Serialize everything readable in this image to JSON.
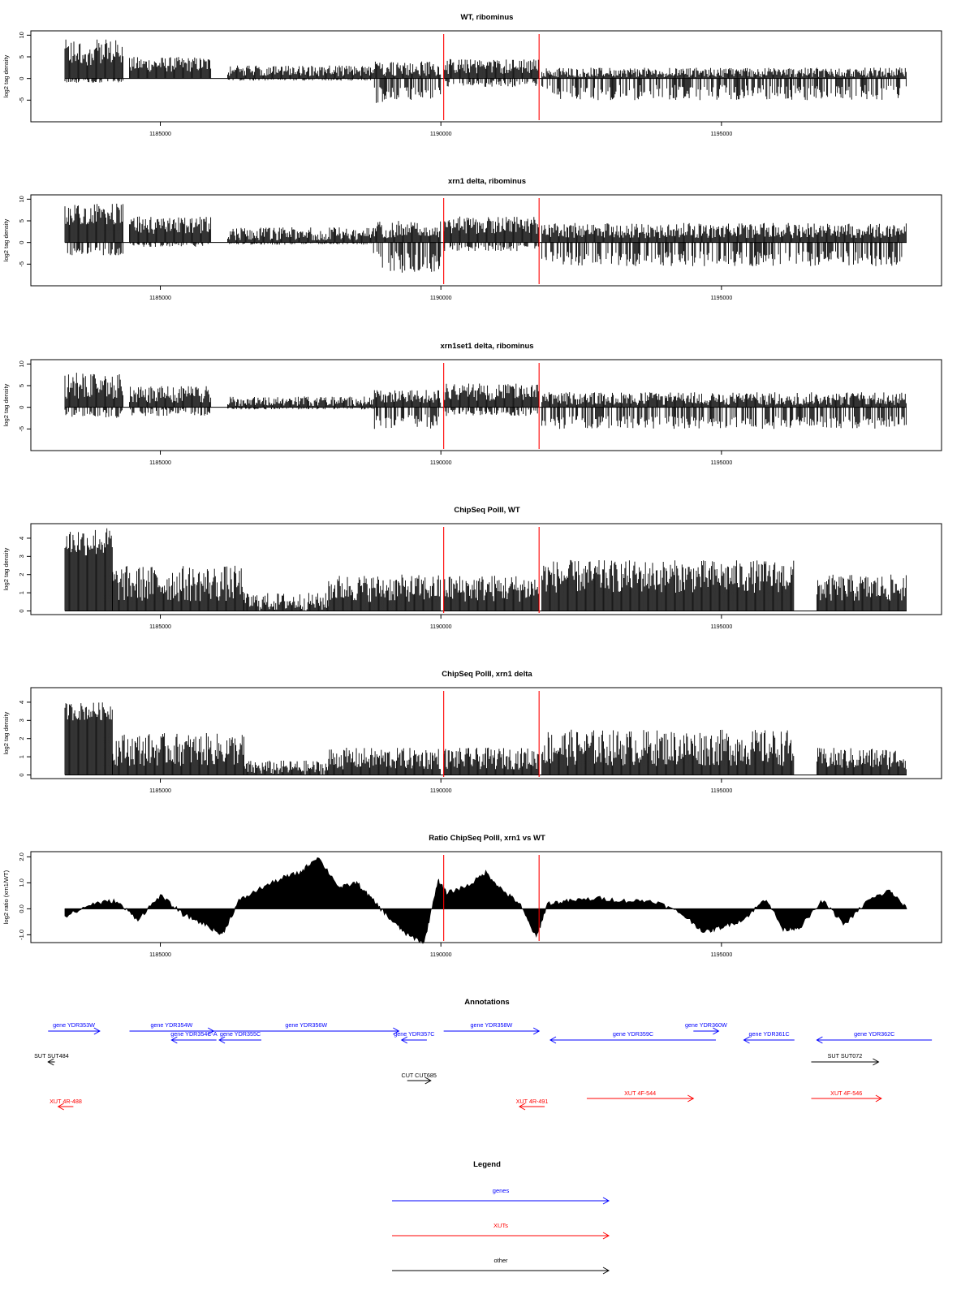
{
  "tracks": [
    {
      "id": "wt",
      "title": "WT, ribominus",
      "ylabel": "log2 tag density",
      "yticks": [
        "10",
        "5",
        "0",
        "-5"
      ],
      "ylim": [
        -10,
        11
      ]
    },
    {
      "id": "xrn1",
      "title": "xrn1 delta, ribominus",
      "ylabel": "log2 tag density",
      "yticks": [
        "10",
        "5",
        "0",
        "-5"
      ],
      "ylim": [
        -10,
        11
      ]
    },
    {
      "id": "xrn1set1",
      "title": "xrn1set1 delta, ribominus",
      "ylabel": "log2 tag density",
      "yticks": [
        "10",
        "5",
        "0",
        "-5"
      ],
      "ylim": [
        -10,
        11
      ]
    },
    {
      "id": "chip_wt",
      "title": "ChipSeq PolII, WT",
      "ylabel": "log2 tag density",
      "yticks": [
        "4",
        "3",
        "2",
        "1",
        "0"
      ],
      "ylim": [
        -0.2,
        4.8
      ]
    },
    {
      "id": "chip_xrn1",
      "title": "ChipSeq PolII, xrn1 delta",
      "ylabel": "log2 tag density",
      "yticks": [
        "4",
        "3",
        "2",
        "1",
        "0"
      ],
      "ylim": [
        -0.2,
        4.8
      ]
    },
    {
      "id": "ratio",
      "title": "Ratio ChipSeq PolII, xrn1 vs WT",
      "ylabel": "log2 ratio (xrn1/WT)",
      "yticks": [
        "2.0",
        "1.0",
        "0.0",
        "-1.0"
      ],
      "ylim": [
        -1.3,
        2.2
      ]
    }
  ],
  "xticks": [
    "1185000",
    "1190000",
    "1195000"
  ],
  "chart_data": {
    "type": "bar",
    "x_range": [
      1183300,
      1198300
    ],
    "xticks": [
      1185000,
      1190000,
      1195000
    ],
    "highlight_positions": [
      1190050,
      1191750
    ],
    "highlight_color": "#ff0000",
    "series": [
      {
        "name": "WT, ribominus",
        "segments": [
          {
            "x": [
              1183300,
              1184350
            ],
            "level": [
              3,
              9
            ],
            "neg": [
              0,
              1
            ]
          },
          {
            "x": [
              1184450,
              1185900
            ],
            "level": [
              1.5,
              5
            ],
            "neg": [
              0,
              0
            ]
          },
          {
            "x": [
              1186200,
              1188800
            ],
            "level": [
              0.5,
              3
            ],
            "neg": [
              0,
              0.5
            ]
          },
          {
            "x": [
              1188800,
              1190000
            ],
            "level": [
              0.5,
              4
            ],
            "neg": [
              2,
              6
            ]
          },
          {
            "x": [
              1190050,
              1191750
            ],
            "level": [
              1,
              4.5
            ],
            "neg": [
              0.5,
              2
            ]
          },
          {
            "x": [
              1191800,
              1198300
            ],
            "level": [
              0.3,
              2.5
            ],
            "neg": [
              1.5,
              5
            ]
          }
        ]
      },
      {
        "name": "xrn1 delta, ribominus",
        "segments": [
          {
            "x": [
              1183300,
              1184350
            ],
            "level": [
              4,
              9
            ],
            "neg": [
              1,
              3
            ]
          },
          {
            "x": [
              1184450,
              1185900
            ],
            "level": [
              2,
              6
            ],
            "neg": [
              0,
              1
            ]
          },
          {
            "x": [
              1186200,
              1188800
            ],
            "level": [
              0.5,
              3.5
            ],
            "neg": [
              0,
              0.5
            ]
          },
          {
            "x": [
              1188800,
              1190000
            ],
            "level": [
              1,
              5
            ],
            "neg": [
              2,
              7
            ]
          },
          {
            "x": [
              1190050,
              1191750
            ],
            "level": [
              2,
              6
            ],
            "neg": [
              0.5,
              2
            ]
          },
          {
            "x": [
              1191800,
              1198300
            ],
            "level": [
              1,
              4.5
            ],
            "neg": [
              2,
              5.5
            ]
          }
        ]
      },
      {
        "name": "xrn1set1 delta, ribominus",
        "segments": [
          {
            "x": [
              1183300,
              1184350
            ],
            "level": [
              2,
              8
            ],
            "neg": [
              0.5,
              2.5
            ]
          },
          {
            "x": [
              1184450,
              1185900
            ],
            "level": [
              1,
              5
            ],
            "neg": [
              0,
              2
            ]
          },
          {
            "x": [
              1186200,
              1188800
            ],
            "level": [
              0.3,
              2.5
            ],
            "neg": [
              0,
              0.5
            ]
          },
          {
            "x": [
              1188800,
              1190000
            ],
            "level": [
              1,
              4
            ],
            "neg": [
              1.5,
              5
            ]
          },
          {
            "x": [
              1190050,
              1191750
            ],
            "level": [
              1.5,
              5.5
            ],
            "neg": [
              0.5,
              2
            ]
          },
          {
            "x": [
              1191800,
              1198300
            ],
            "level": [
              0.5,
              3.5
            ],
            "neg": [
              2,
              5
            ]
          }
        ]
      },
      {
        "name": "ChipSeq PolII, WT",
        "segments": [
          {
            "x": [
              1183300,
              1184150
            ],
            "level": [
              3,
              4.6
            ],
            "neg": [
              0,
              0
            ]
          },
          {
            "x": [
              1184150,
              1186500
            ],
            "level": [
              0.5,
              2.5
            ],
            "neg": [
              0,
              0
            ]
          },
          {
            "x": [
              1186500,
              1188000
            ],
            "level": [
              0,
              1
            ],
            "neg": [
              0,
              0
            ]
          },
          {
            "x": [
              1188000,
              1190000
            ],
            "level": [
              0.5,
              2
            ],
            "neg": [
              0,
              0
            ]
          },
          {
            "x": [
              1190050,
              1191750
            ],
            "level": [
              0.5,
              2
            ],
            "neg": [
              0,
              0
            ]
          },
          {
            "x": [
              1191800,
              1196300
            ],
            "level": [
              1,
              2.8
            ],
            "neg": [
              0,
              0
            ]
          },
          {
            "x": [
              1196700,
              1198300
            ],
            "level": [
              0.5,
              2
            ],
            "neg": [
              0,
              0
            ]
          }
        ]
      },
      {
        "name": "ChipSeq PolII, xrn1 delta",
        "segments": [
          {
            "x": [
              1183300,
              1184150
            ],
            "level": [
              3,
              4
            ],
            "neg": [
              0,
              0
            ]
          },
          {
            "x": [
              1184150,
              1186500
            ],
            "level": [
              0.5,
              2.3
            ],
            "neg": [
              0,
              0
            ]
          },
          {
            "x": [
              1186500,
              1188000
            ],
            "level": [
              0,
              0.8
            ],
            "neg": [
              0,
              0
            ]
          },
          {
            "x": [
              1188000,
              1190000
            ],
            "level": [
              0.3,
              1.5
            ],
            "neg": [
              0,
              0
            ]
          },
          {
            "x": [
              1190050,
              1191750
            ],
            "level": [
              0.3,
              1.5
            ],
            "neg": [
              0,
              0
            ]
          },
          {
            "x": [
              1191800,
              1196300
            ],
            "level": [
              0.5,
              2.5
            ],
            "neg": [
              0,
              0
            ]
          },
          {
            "x": [
              1196700,
              1198300
            ],
            "level": [
              0.3,
              1.5
            ],
            "neg": [
              0,
              0
            ]
          }
        ]
      },
      {
        "name": "Ratio ChipSeq PolII, xrn1 vs WT",
        "type": "area",
        "x": [
          1183300,
          1183800,
          1184200,
          1184600,
          1185000,
          1185400,
          1185800,
          1186100,
          1186400,
          1186800,
          1187200,
          1187500,
          1187800,
          1188200,
          1188500,
          1188800,
          1189100,
          1189400,
          1189700,
          1189950,
          1190100,
          1190500,
          1190800,
          1191100,
          1191400,
          1191700,
          1191900,
          1192300,
          1192800,
          1193300,
          1193800,
          1194300,
          1194700,
          1195000,
          1195400,
          1195800,
          1196100,
          1196400,
          1196800,
          1197200,
          1197600,
          1198000,
          1198300
        ],
        "y": [
          -0.3,
          0.2,
          0.3,
          -0.4,
          0.5,
          -0.2,
          -0.6,
          -1.0,
          0.3,
          0.8,
          1.2,
          1.4,
          2.0,
          0.8,
          1.0,
          0.3,
          -0.4,
          -1.0,
          -1.3,
          1.1,
          0.6,
          0.9,
          1.4,
          0.7,
          0.2,
          -1.1,
          0.2,
          0.3,
          0.4,
          0.3,
          0.3,
          -0.2,
          -0.9,
          -0.7,
          -0.4,
          0.4,
          -0.8,
          -0.7,
          0.3,
          -0.6,
          0.3,
          0.7,
          0.0
        ]
      }
    ]
  },
  "annotations": {
    "title": "Annotations",
    "features": [
      {
        "label": "gene YDR353W",
        "color": "#0000ff",
        "strand": "+",
        "start": 1183000,
        "end": 1183920,
        "row": 0
      },
      {
        "label": "gene YDR354W",
        "color": "#0000ff",
        "strand": "+",
        "start": 1184450,
        "end": 1185950,
        "row": 0
      },
      {
        "label": "gene YDR354C-A",
        "color": "#0000ff",
        "strand": "-",
        "start": 1185200,
        "end": 1186000,
        "row": 1
      },
      {
        "label": "gene YDR355C",
        "color": "#0000ff",
        "strand": "-",
        "start": 1186050,
        "end": 1186800,
        "row": 1
      },
      {
        "label": "gene YDR356W",
        "color": "#0000ff",
        "strand": "+",
        "start": 1185950,
        "end": 1189250,
        "row": 0
      },
      {
        "label": "gene YDR357C",
        "color": "#0000ff",
        "strand": "-",
        "start": 1189300,
        "end": 1189750,
        "row": 1
      },
      {
        "label": "gene YDR358W",
        "color": "#0000ff",
        "strand": "+",
        "start": 1190050,
        "end": 1191750,
        "row": 0
      },
      {
        "label": "gene YDR359C",
        "color": "#0000ff",
        "strand": "-",
        "start": 1191950,
        "end": 1194900,
        "row": 1
      },
      {
        "label": "gene YDR360W",
        "color": "#0000ff",
        "strand": "+",
        "start": 1194500,
        "end": 1194950,
        "row": 0
      },
      {
        "label": "gene YDR361C",
        "color": "#0000ff",
        "strand": "-",
        "start": 1195400,
        "end": 1196300,
        "row": 1
      },
      {
        "label": "gene YDR362C",
        "color": "#0000ff",
        "strand": "-",
        "start": 1196700,
        "end": 1198750,
        "row": 1
      },
      {
        "label": "SUT SUT484",
        "color": "#000000",
        "strand": "-",
        "start": 1183000,
        "end": 1183120,
        "row": 2
      },
      {
        "label": "SUT SUT072",
        "color": "#000000",
        "strand": "+",
        "start": 1196600,
        "end": 1197800,
        "row": 2
      },
      {
        "label": "CUT CUT685",
        "color": "#000000",
        "strand": "+",
        "start": 1189400,
        "end": 1189820,
        "row": 3
      },
      {
        "label": "XUT 4R-488",
        "color": "#ff0000",
        "strand": "-",
        "start": 1183180,
        "end": 1183450,
        "row": 5
      },
      {
        "label": "XUT 4R-491",
        "color": "#ff0000",
        "strand": "-",
        "start": 1191400,
        "end": 1191850,
        "row": 5
      },
      {
        "label": "XUT 4F-544",
        "color": "#ff0000",
        "strand": "+",
        "start": 1192600,
        "end": 1194500,
        "row": 4
      },
      {
        "label": "XUT 4F-546",
        "color": "#ff0000",
        "strand": "+",
        "start": 1196600,
        "end": 1197850,
        "row": 4
      }
    ]
  },
  "legend": {
    "title": "Legend",
    "items": [
      {
        "label": "genes",
        "color": "#0000ff"
      },
      {
        "label": "XUTs",
        "color": "#ff0000"
      },
      {
        "label": "other",
        "color": "#000000"
      }
    ]
  }
}
